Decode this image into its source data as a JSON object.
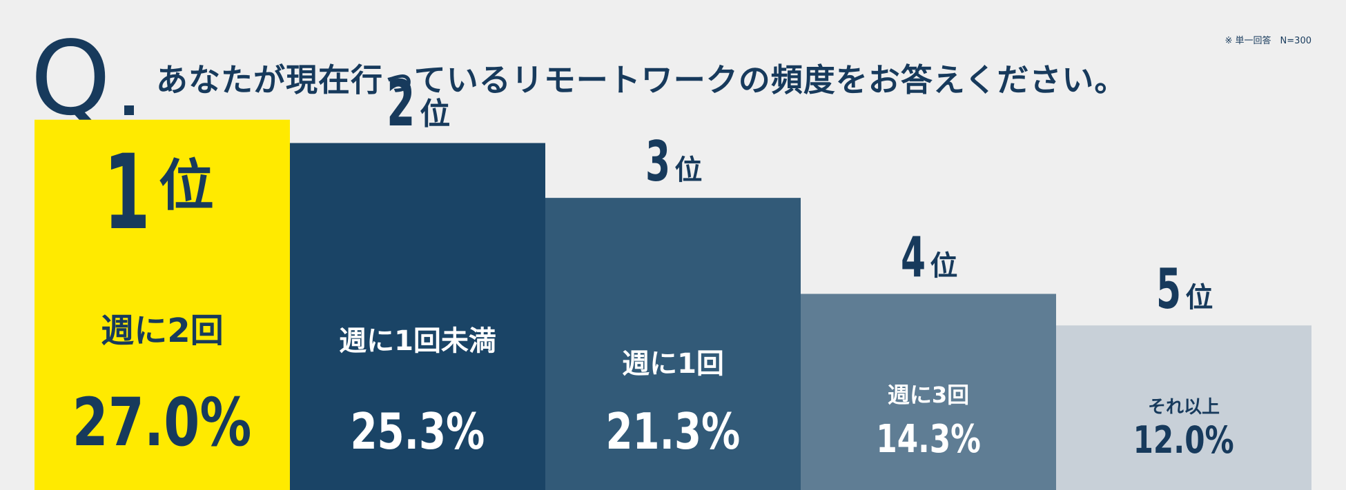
{
  "header": {
    "q_letter": "Q",
    "question": "あなたが現在行っているリモートワークの頻度をお答えください。",
    "note": "※ 単一回答　N=300"
  },
  "colors": {
    "background": "#efefef",
    "navy": "#173a5c",
    "highlight": "#ffea00"
  },
  "chart_data": {
    "type": "bar",
    "title": "あなたが現在行っているリモートワークの頻度をお答えください。",
    "categories": [
      "週に2回",
      "週に1回未満",
      "週に1回",
      "週に3回",
      "それ以上"
    ],
    "values": [
      27.0,
      25.3,
      21.3,
      14.3,
      12.0
    ],
    "value_labels": [
      "27.0%",
      "25.3%",
      "21.3%",
      "14.3%",
      "12.0%"
    ],
    "ranks": [
      "1",
      "2",
      "3",
      "4",
      "5"
    ],
    "rank_suffix": "位",
    "bar_colors": [
      "#ffea00",
      "#1a4466",
      "#325a78",
      "#5f7d94",
      "#c8d0d8"
    ],
    "label_colors": [
      "#173a5c",
      "#ffffff",
      "#ffffff",
      "#ffffff",
      "#173a5c"
    ],
    "note": "※ 単一回答　N=300"
  }
}
